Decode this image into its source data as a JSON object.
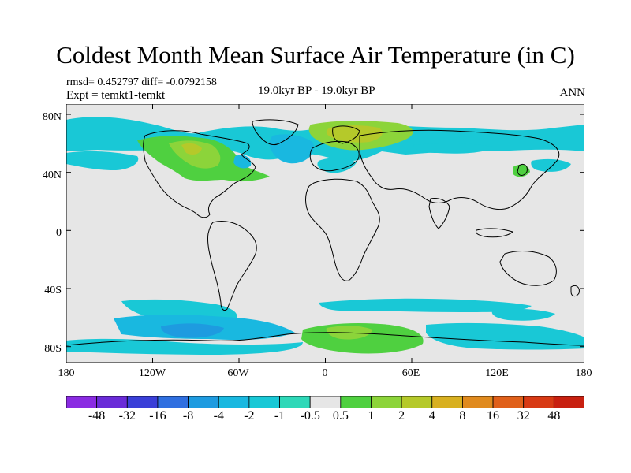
{
  "title": "Coldest Month Mean Surface Air Temperature (in C)",
  "stats": {
    "rmsd_diff": "rmsd= 0.452797 diff= -0.0792158",
    "expt": "Expt = temkt1-temkt",
    "period": "19.0kyr BP - 19.0kyr BP",
    "season": "ANN"
  },
  "axes": {
    "y_ticks": [
      "80N",
      "40N",
      "0",
      "40S",
      "80S"
    ],
    "x_ticks": [
      "180",
      "120W",
      "60W",
      "0",
      "60E",
      "120E",
      "180"
    ]
  },
  "colorbar": {
    "labels": [
      "-48",
      "-32",
      "-16",
      "-8",
      "-4",
      "-2",
      "-1",
      "-0.5",
      "0.5",
      "1",
      "2",
      "4",
      "8",
      "16",
      "32",
      "48"
    ],
    "colors": [
      "#8a2be2",
      "#6a2bd8",
      "#3a3fd8",
      "#2f6fe0",
      "#1e9be0",
      "#19b8e0",
      "#19c8d6",
      "#2ed8b8",
      "#e6e6e6",
      "#4fd040",
      "#8cd43a",
      "#b5c92a",
      "#d8b020",
      "#e08a1e",
      "#e0601a",
      "#d83a14",
      "#c82010"
    ]
  },
  "map_colors": {
    "neutral": "#e6e6e6",
    "coast": "#000000",
    "cold_strong": "#1e9be0",
    "cold_mid": "#19b8e0",
    "cold_light": "#19c8d6",
    "cold_pale": "#2ed8b8",
    "warm_light": "#4fd040",
    "warm_mid": "#8cd43a",
    "warm_strong": "#b5c92a",
    "warm_hot": "#d8b020"
  }
}
